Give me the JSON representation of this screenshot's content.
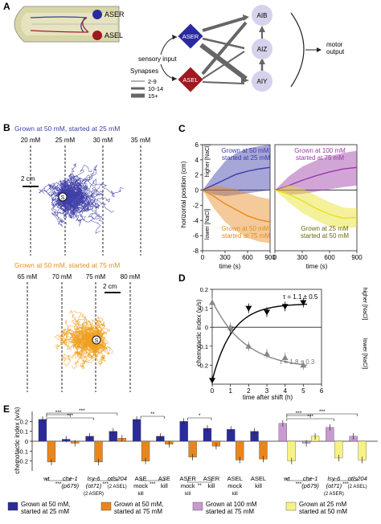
{
  "panels": {
    "A": {
      "letter": "A",
      "neuron_labels": [
        "ASER",
        "ASEL"
      ],
      "sensory_input": "sensory input",
      "diamond_labels": [
        "ASER",
        "ASEL"
      ],
      "targets": [
        "AIB",
        "AIZ",
        "AIY"
      ],
      "motor_output": "motor\noutput",
      "synapses_title": "Synapses",
      "synapse_legend": [
        "2-9",
        "10-14",
        "15+"
      ],
      "colors": {
        "aser": "#2a2aa0",
        "asel": "#a01822",
        "head": "#d8d6a8",
        "target": "#d6d2ec"
      }
    },
    "B": {
      "letter": "B",
      "top_title": "Grown at 50 mM, started at 25 mM",
      "top_ticks": [
        "20 mM",
        "25 mM",
        "30 mM",
        "35 mM"
      ],
      "top_scale": "2 cm",
      "bottom_title": "Grown at 50 mM, started at 75 mM",
      "bottom_ticks": [
        "65 mM",
        "70 mM",
        "75 mM",
        "80 mM"
      ],
      "bottom_scale": "2 cm",
      "start_marker": "S",
      "colors": {
        "top": "#3f3fa8",
        "bottom": "#f0a020"
      }
    },
    "C": {
      "letter": "C",
      "ylabel": "horizontal position (cm)",
      "higher": "higher [NaCl]",
      "lower": "lower [NaCl]",
      "xlabel": "time (s)",
      "left_labels": [
        "Grown at 50 mM,\nstarted at 25 mM",
        "Grown at 50 mM,\nstarted at 75 mM"
      ],
      "right_labels": [
        "Grown at 100 mM\nstarted at 75 mM",
        "Grown at 25 mM\nstarted at 50 mM"
      ]
    },
    "D": {
      "letter": "D",
      "ylabel": "chemotactic index (vₗ/s)",
      "xlabel": "time after shift (h)",
      "higher": "higher [NaCl]",
      "lower": "lower [NaCl]",
      "tau_black": "τ = 1.1 ± 0.5",
      "tau_gray": "τ = 1.8 ± 0.3"
    },
    "E": {
      "letter": "E",
      "ylabel": "chemotactic index (vₗ/s)",
      "significance": [
        "***",
        "***",
        "***",
        "***",
        "***",
        "***",
        "**",
        "***",
        "*",
        "**",
        "***",
        "***",
        "***",
        "***",
        "***"
      ]
    }
  },
  "chart_data": [
    {
      "type": "line",
      "panel": "C-left",
      "xlabel": "time (s)",
      "ylabel": "horizontal position (cm)",
      "xlim": [
        0,
        900
      ],
      "ylim": [
        -8,
        6
      ],
      "xticks": [
        0,
        300,
        600,
        900
      ],
      "yticks": [
        -8,
        -6,
        -4,
        -2,
        0,
        2,
        4,
        6
      ],
      "series": [
        {
          "name": "Grown at 50 mM, started at 25 mM",
          "color": "#3a3aa6",
          "x": [
            0,
            150,
            300,
            450,
            600,
            750,
            900
          ],
          "y": [
            0,
            0.7,
            1.4,
            2.1,
            2.5,
            2.8,
            3.0
          ],
          "lower": [
            0,
            -0.6,
            -0.8,
            -0.6,
            -0.4,
            -0.2,
            0.0
          ],
          "upper": [
            0,
            2.0,
            3.8,
            4.9,
            5.5,
            5.8,
            6.0
          ]
        },
        {
          "name": "Grown at 50 mM, started at 75 mM",
          "color": "#e68a1e",
          "x": [
            0,
            150,
            300,
            450,
            600,
            750,
            900
          ],
          "y": [
            0,
            -0.8,
            -1.8,
            -2.6,
            -3.4,
            -3.9,
            -4.2
          ],
          "lower": [
            0,
            -2.4,
            -4.2,
            -5.4,
            -6.3,
            -6.8,
            -7.0
          ],
          "upper": [
            0,
            0.6,
            0.4,
            0.1,
            -0.4,
            -0.9,
            -1.2
          ]
        }
      ]
    },
    {
      "type": "line",
      "panel": "C-right",
      "xlabel": "time (s)",
      "xlim": [
        0,
        900
      ],
      "ylim": [
        -8,
        6
      ],
      "xticks": [
        0,
        300,
        600,
        900
      ],
      "series": [
        {
          "name": "Grown at 100 mM started at 75 mM",
          "color": "#9a3aa6",
          "x": [
            0,
            150,
            300,
            450,
            600,
            750,
            900
          ],
          "y": [
            0,
            0.6,
            1.3,
            1.9,
            2.4,
            2.8,
            3.0
          ],
          "lower": [
            0,
            -0.6,
            -0.5,
            -0.2,
            0.1,
            0.4,
            0.6
          ],
          "upper": [
            0,
            1.8,
            3.1,
            3.9,
            4.5,
            4.9,
            5.2
          ]
        },
        {
          "name": "Grown at 25 mM started at 50 mM",
          "color": "#e8e020",
          "x": [
            0,
            150,
            300,
            450,
            600,
            750,
            900
          ],
          "y": [
            0,
            -0.5,
            -1.4,
            -2.4,
            -3.2,
            -3.7,
            -3.6
          ],
          "lower": [
            0,
            -1.6,
            -3.0,
            -4.0,
            -4.8,
            -5.0,
            -4.9
          ],
          "upper": [
            0,
            0.7,
            0.2,
            -0.7,
            -1.6,
            -2.3,
            -2.4
          ]
        }
      ]
    },
    {
      "type": "scatter",
      "panel": "D",
      "xlabel": "time after shift (h)",
      "ylabel": "chemotactic index (vₗ/s)",
      "xlim": [
        0,
        6
      ],
      "ylim": [
        -0.3,
        0.2
      ],
      "xticks": [
        0,
        1,
        2,
        3,
        4,
        5,
        6
      ],
      "yticks": [
        -0.2,
        -0.1,
        0,
        0.1,
        0.2
      ],
      "series": [
        {
          "name": "τ = 1.1 ± 0.5",
          "color": "#000000",
          "x": [
            0,
            1,
            2,
            3,
            4,
            5
          ],
          "y": [
            -0.28,
            -0.01,
            0.1,
            0.08,
            0.11,
            0.13
          ],
          "tau": 1.1,
          "y0": -0.28,
          "yinf": 0.125
        },
        {
          "name": "τ = 1.8 ± 0.3",
          "color": "#888888",
          "x": [
            0,
            1,
            2,
            3,
            4,
            5
          ],
          "y": [
            0.13,
            0.0,
            -0.1,
            -0.14,
            -0.16,
            -0.2
          ],
          "tau": 1.8,
          "y0": 0.14,
          "yinf": -0.22
        }
      ]
    },
    {
      "type": "bar",
      "panel": "E",
      "ylabel": "chemotactic index (vₗ/s)",
      "ylim": [
        -0.3,
        0.3
      ],
      "yticks": [
        -0.2,
        -0.1,
        0,
        0.1,
        0.2
      ],
      "groups": [
        {
          "label": "wt",
          "sub": "",
          "bars": [
            {
              "c": "blue",
              "v": 0.22
            },
            {
              "c": "orange",
              "v": -0.21
            }
          ]
        },
        {
          "label": "che-1",
          "sub": "(p679)",
          "bars": [
            {
              "c": "blue",
              "v": 0.02
            },
            {
              "c": "orange",
              "v": -0.02
            }
          ]
        },
        {
          "label": "lsy-6",
          "sub": "(ot71)",
          "note": "(2 ASER)",
          "bars": [
            {
              "c": "blue",
              "v": 0.05
            },
            {
              "c": "orange",
              "v": -0.21
            }
          ]
        },
        {
          "label": "otls204",
          "sub": "",
          "note": "(2 ASEL)",
          "bars": [
            {
              "c": "blue",
              "v": 0.1
            },
            {
              "c": "orange",
              "v": 0.03
            }
          ]
        },
        {
          "label": "ASE",
          "sub": "mock",
          "note": "kill",
          "bars": [
            {
              "c": "blue",
              "v": 0.22
            },
            {
              "c": "orange",
              "v": -0.2
            }
          ]
        },
        {
          "label": "ASE",
          "sub": "kill",
          "bars": [
            {
              "c": "blue",
              "v": 0.05
            },
            {
              "c": "orange",
              "v": -0.03
            }
          ]
        },
        {
          "label": "ASER",
          "sub": "mock",
          "note": "kill",
          "bars": [
            {
              "c": "blue",
              "v": 0.2
            },
            {
              "c": "orange",
              "v": -0.16
            }
          ]
        },
        {
          "label": "ASER",
          "sub": "kill",
          "bars": [
            {
              "c": "blue",
              "v": 0.13
            },
            {
              "c": "orange",
              "v": -0.05
            }
          ]
        },
        {
          "label": "ASEL",
          "sub": "mock",
          "note": "kill",
          "bars": [
            {
              "c": "blue",
              "v": 0.12
            },
            {
              "c": "orange",
              "v": -0.19
            }
          ]
        },
        {
          "label": "ASEL",
          "sub": "kill",
          "bars": [
            {
              "c": "blue",
              "v": 0.1
            },
            {
              "c": "orange",
              "v": -0.18
            }
          ]
        },
        {
          "label": "wt",
          "sub": "",
          "bars": [
            {
              "c": "purple",
              "v": 0.18
            },
            {
              "c": "yellow",
              "v": -0.2
            }
          ]
        },
        {
          "label": "che-1",
          "sub": "(p679)",
          "bars": [
            {
              "c": "purple",
              "v": -0.02
            },
            {
              "c": "yellow",
              "v": 0.05
            }
          ]
        },
        {
          "label": "lsy-6",
          "sub": "(ot71)",
          "note": "(2 ASER)",
          "bars": [
            {
              "c": "purple",
              "v": 0.14
            },
            {
              "c": "yellow",
              "v": -0.17
            }
          ]
        },
        {
          "label": "otls204",
          "sub": "",
          "note": "(2 ASEL)",
          "bars": [
            {
              "c": "purple",
              "v": 0.05
            },
            {
              "c": "yellow",
              "v": -0.19
            }
          ]
        }
      ],
      "colors": {
        "blue": "#2b2b9a",
        "orange": "#e8861e",
        "purple": "#c89ad0",
        "yellow": "#f7f284"
      }
    }
  ],
  "legend": [
    {
      "label": "Grown at 50 mM,\nstarted at 25 mM",
      "color": "#2b2b9a"
    },
    {
      "label": "Grown at 50 mM,\nstarted at 75 mM",
      "color": "#e8861e"
    },
    {
      "label": "Grown at 100 mM\nstarted at 75 mM",
      "color": "#c89ad0"
    },
    {
      "label": "Grown at 25 mM\nstarted at 50 mM",
      "color": "#f7f284"
    }
  ]
}
